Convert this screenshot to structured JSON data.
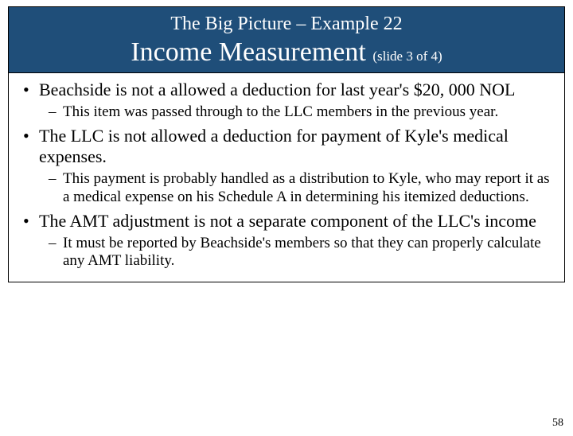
{
  "header": {
    "top": "The Big Picture – Example 22",
    "main": "Income Measurement ",
    "sub": "(slide 3 of 4)",
    "bg_color": "#1f4e79",
    "text_color": "#ffffff",
    "top_fontsize": 24,
    "main_fontsize": 34,
    "sub_fontsize": 17
  },
  "bullets": [
    {
      "text": "Beachside is not a allowed a deduction for last year's $20, 000 NOL",
      "sub": [
        "This item was passed through to the LLC members in the previous year."
      ]
    },
    {
      "text": "The LLC is not allowed a deduction for payment of Kyle's medical expenses.",
      "sub": [
        "This payment is probably handled as a distribution to Kyle, who may report it as a medical expense on his Schedule A in determining his itemized deductions."
      ]
    },
    {
      "text": "The AMT adjustment is not a separate component of the LLC's income",
      "sub": [
        "It must be reported by  Beachside's members so that they can properly calculate any AMT liability."
      ]
    }
  ],
  "page_number": "58",
  "style": {
    "slide_border_color": "#000000",
    "body_bg": "#ffffff",
    "level1_fontsize": 22,
    "level2_fontsize": 19,
    "text_color": "#000000"
  }
}
